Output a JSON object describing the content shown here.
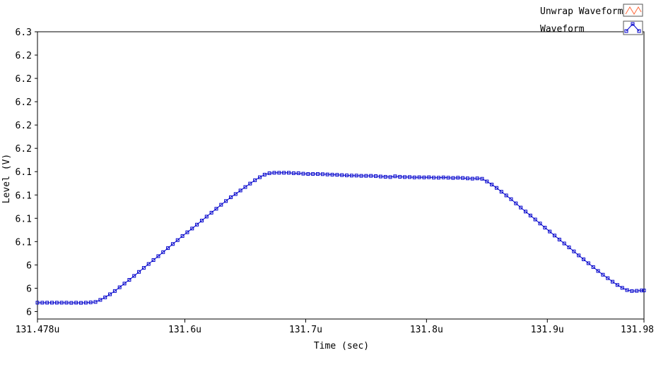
{
  "chart_data": {
    "type": "line",
    "xlabel": "Time (sec)",
    "ylabel": "Level (V)",
    "x_tick_labels": [
      "131.478u",
      "131.6u",
      "131.7u",
      "131.8u",
      "131.9u",
      "131.98"
    ],
    "x_ticks": [
      131.478,
      131.6,
      131.7,
      131.8,
      131.9,
      131.98
    ],
    "x_unit_note": "u",
    "xlim": [
      131.478,
      131.98
    ],
    "y_tick_labels": [
      "6",
      "6",
      "6",
      "6.1",
      "6.1",
      "6.1",
      "6.1",
      "6.2",
      "6.2",
      "6.2",
      "6.2",
      "6.2",
      "6.3"
    ],
    "y_ticks": [
      6.0,
      6.025,
      6.05,
      6.075,
      6.1,
      6.125,
      6.15,
      6.175,
      6.2,
      6.225,
      6.25,
      6.275,
      6.3
    ],
    "ylim": [
      5.992,
      6.3
    ],
    "grid": false,
    "legend_position": "top-right",
    "legend": [
      {
        "name": "Unwrap Waveform",
        "color": "#ff6a3d",
        "icon": "orange-zigzag-icon"
      },
      {
        "name": "Waveform",
        "color": "#0000cc",
        "icon": "blue-marker-line-icon"
      }
    ],
    "series": [
      {
        "name": "Waveform",
        "color": "#0000cc",
        "marker": "square",
        "x": [
          131.478,
          131.482,
          131.486,
          131.49,
          131.494,
          131.498,
          131.502,
          131.506,
          131.51,
          131.514,
          131.518,
          131.522,
          131.526,
          131.53,
          131.534,
          131.538,
          131.542,
          131.546,
          131.55,
          131.554,
          131.558,
          131.562,
          131.566,
          131.57,
          131.574,
          131.578,
          131.582,
          131.586,
          131.59,
          131.594,
          131.598,
          131.602,
          131.606,
          131.61,
          131.614,
          131.618,
          131.622,
          131.626,
          131.63,
          131.634,
          131.638,
          131.642,
          131.646,
          131.65,
          131.654,
          131.658,
          131.662,
          131.666,
          131.67,
          131.674,
          131.678,
          131.682,
          131.686,
          131.69,
          131.694,
          131.698,
          131.702,
          131.706,
          131.71,
          131.714,
          131.718,
          131.722,
          131.726,
          131.73,
          131.734,
          131.738,
          131.742,
          131.746,
          131.75,
          131.754,
          131.758,
          131.762,
          131.766,
          131.77,
          131.774,
          131.778,
          131.782,
          131.786,
          131.79,
          131.794,
          131.798,
          131.802,
          131.806,
          131.81,
          131.814,
          131.818,
          131.822,
          131.826,
          131.83,
          131.834,
          131.838,
          131.842,
          131.846,
          131.85,
          131.854,
          131.858,
          131.862,
          131.866,
          131.87,
          131.874,
          131.878,
          131.882,
          131.886,
          131.89,
          131.894,
          131.898,
          131.902,
          131.906,
          131.91,
          131.914,
          131.918,
          131.922,
          131.926,
          131.93,
          131.934,
          131.938,
          131.942,
          131.946,
          131.95,
          131.954,
          131.958,
          131.962,
          131.966,
          131.97,
          131.974,
          131.978,
          131.98
        ],
        "y": [
          6.0095,
          6.0095,
          6.0095,
          6.0095,
          6.0095,
          6.0095,
          6.0095,
          6.0093,
          6.0095,
          6.0093,
          6.0095,
          6.0098,
          6.0103,
          6.0125,
          6.0152,
          6.0185,
          6.022,
          6.026,
          6.03,
          6.034,
          6.0382,
          6.0425,
          6.0468,
          6.051,
          6.0552,
          6.0594,
          6.0637,
          6.068,
          6.0724,
          6.0766,
          6.081,
          6.085,
          6.089,
          6.0932,
          6.0975,
          6.1018,
          6.106,
          6.1102,
          6.1145,
          6.1185,
          6.1225,
          6.126,
          6.1298,
          6.1335,
          6.1372,
          6.1408,
          6.144,
          6.1468,
          6.1483,
          6.1488,
          6.1488,
          6.1488,
          6.1488,
          6.1483,
          6.1483,
          6.1478,
          6.1475,
          6.1475,
          6.1475,
          6.1473,
          6.147,
          6.1468,
          6.1466,
          6.1463,
          6.146,
          6.1458,
          6.1458,
          6.1455,
          6.1455,
          6.1455,
          6.1452,
          6.1448,
          6.1445,
          6.1442,
          6.145,
          6.1445,
          6.1442,
          6.1442,
          6.1438,
          6.144,
          6.1438,
          6.144,
          6.1436,
          6.1435,
          6.1438,
          6.1435,
          6.1432,
          6.1435,
          6.1432,
          6.1428,
          6.1425,
          6.1428,
          6.1424,
          6.1395,
          6.1362,
          6.1326,
          6.1285,
          6.1245,
          6.1205,
          6.116,
          6.1115,
          6.1072,
          6.103,
          6.0987,
          6.0944,
          6.09,
          6.0858,
          6.0815,
          6.0772,
          6.073,
          6.0688,
          6.0645,
          6.0602,
          6.056,
          6.0518,
          6.0477,
          6.0435,
          6.0395,
          6.0358,
          6.032,
          6.0285,
          6.0254,
          6.023,
          6.022,
          6.0222,
          6.0226,
          6.0226
        ]
      }
    ]
  }
}
